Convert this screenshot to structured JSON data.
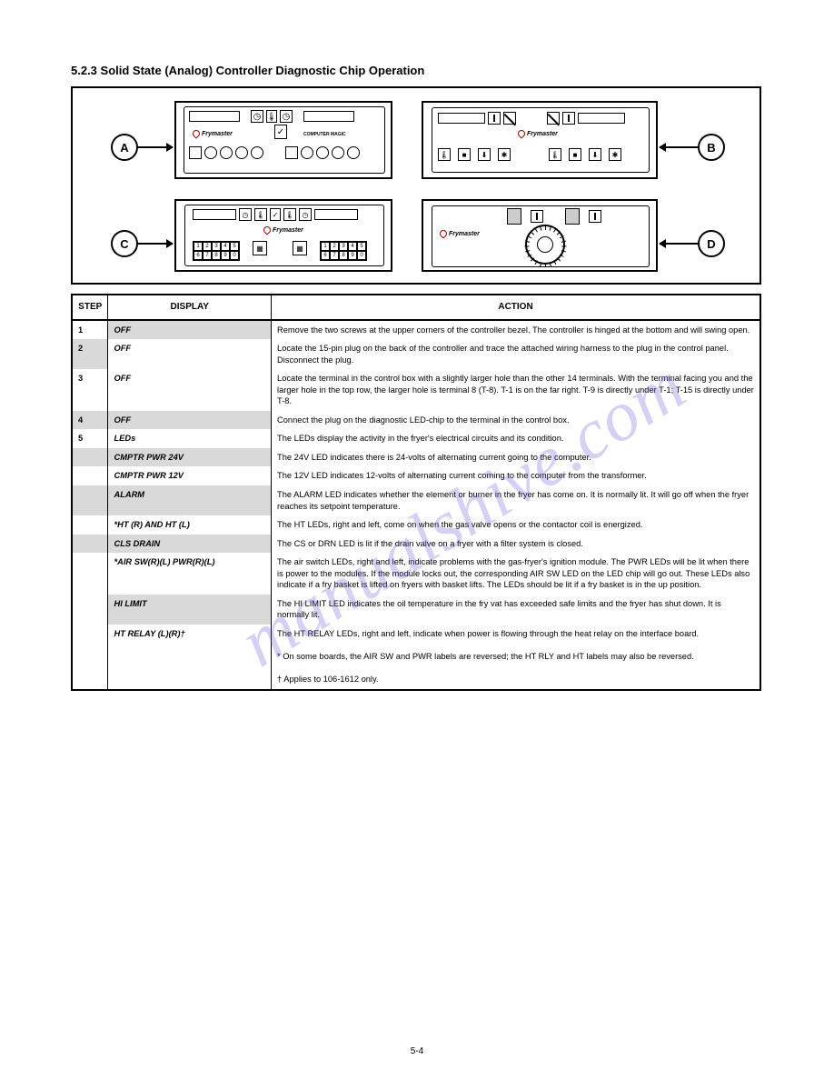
{
  "heading": "5.2.3  Solid State (Analog) Controller Diagnostic Chip Operation",
  "panel_labels": {
    "a": "A",
    "b": "B",
    "c": "C",
    "d": "D"
  },
  "brand": "Frymaster",
  "panel_a": {
    "subtext": "COMPUTER MAGIC"
  },
  "panel_c": {
    "keypad": [
      "1",
      "2",
      "3",
      "4",
      "5",
      "6",
      "7",
      "8",
      "9",
      "0"
    ]
  },
  "panel_d": {
    "knob_max": "300"
  },
  "table": {
    "headers": [
      "STEP",
      "DISPLAY",
      "ACTION"
    ],
    "rows": [
      {
        "step": "1",
        "display": "OFF",
        "action": "Remove the two screws at the upper corners of the controller bezel. The controller is hinged at the bottom and will swing open.",
        "shade_step": false,
        "shade_display": true
      },
      {
        "step": "2",
        "display": "OFF",
        "action": "Locate the 15-pin plug on the back of the controller and trace the attached wiring harness to the plug in the control panel. Disconnect the plug.",
        "shade_step": true,
        "shade_display": false
      },
      {
        "step": "3",
        "display": "OFF",
        "action": "Locate the terminal in the control box with a slightly larger hole than the other 14 terminals. With the terminal facing you and the larger hole in the top row, the larger hole is terminal 8 (T-8). T-1 is on the far right. T-9 is directly under T-1; T-15 is directly under T-8.",
        "shade_step": false,
        "shade_display": false
      },
      {
        "step": "4",
        "display": "OFF",
        "action": "Connect the plug on the diagnostic LED-chip to the terminal in the control box.",
        "shade_step": true,
        "shade_display": true
      },
      {
        "step": "5",
        "display": "LEDs",
        "action": "The LEDs display the activity in the fryer's electrical circuits and its condition.",
        "shade_step": false,
        "shade_display": false
      },
      {
        "step": "",
        "display": "CMPTR PWR 24V",
        "action": "The 24V LED indicates there is 24-volts of alternating current going to the computer.",
        "shade_step": true,
        "shade_display": true
      },
      {
        "step": "",
        "display": "CMPTR PWR 12V",
        "action": "The 12V LED indicates 12-volts of alternating current coming to the computer from the transformer.",
        "shade_step": false,
        "shade_display": false
      },
      {
        "step": "",
        "display": "ALARM",
        "action": "The ALARM LED indicates whether the element or burner in the fryer has come on. It is normally lit. It will go off when the fryer reaches its setpoint temperature.",
        "shade_step": true,
        "shade_display": true
      },
      {
        "step": "",
        "display": "*HT (R) AND HT (L)",
        "action": "The HT LEDs, right and left, come on when the gas valve opens or the contactor coil is energized.",
        "shade_step": false,
        "shade_display": false
      },
      {
        "step": "",
        "display": "CLS DRAIN",
        "action": "The CS or DRN LED is lit if the drain valve on a fryer with a filter system is closed.",
        "shade_step": true,
        "shade_display": true
      },
      {
        "step": "",
        "display": "*AIR SW(R)(L) PWR(R)(L)",
        "action": "The air switch LEDs, right and left, indicate problems with the gas-fryer's ignition module. The PWR LEDs will be lit when there is power to the modules. If the module locks out, the corresponding AIR SW LED on the LED chip will go out. These LEDs also indicate if a fry basket is lifted on fryers with basket lifts. The LEDs should be lit if a fry basket is in the up position.",
        "shade_step": false,
        "shade_display": false
      },
      {
        "step": "",
        "display": "HI LIMIT",
        "action": "The HI LIMIT LED indicates the oil temperature in the fry vat has exceeded safe limits and the fryer has shut down. It is normally lit.",
        "shade_step": false,
        "shade_display": true
      },
      {
        "step": "",
        "display": "HT RELAY (L)(R)†",
        "action": "The HT RELAY LEDs, right and left, indicate when power is flowing through the heat relay on the interface board.",
        "shade_step": false,
        "shade_display": false
      }
    ],
    "footnotes": [
      "* On some boards, the AIR SW and PWR labels are reversed; the HT RLY and HT labels may also be reversed.",
      "† Applies to 106-1612 only."
    ]
  },
  "page_number": "5-4",
  "watermark": "manualshive.com",
  "colors": {
    "shade": "#d9d9d9",
    "border": "#000000",
    "wm": "rgba(100,90,220,0.28)"
  }
}
